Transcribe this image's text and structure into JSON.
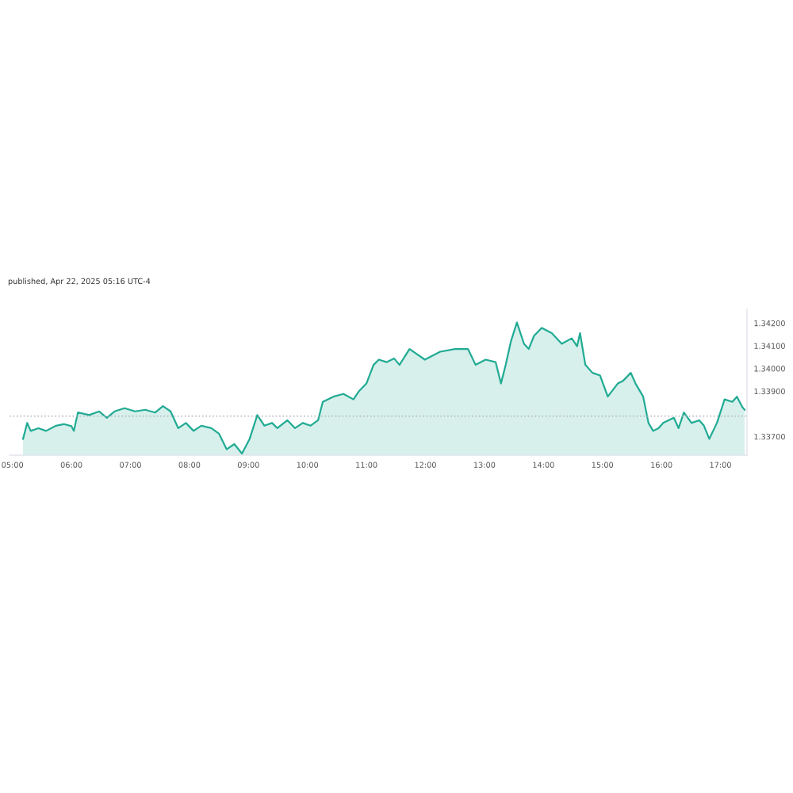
{
  "chart_data": {
    "type": "area",
    "title": "published, Apr 22, 2025 05:16 UTC-4",
    "x": [
      5.18,
      5.25,
      5.31,
      5.44,
      5.57,
      5.74,
      5.87,
      6.0,
      6.04,
      6.11,
      6.3,
      6.47,
      6.6,
      6.73,
      6.9,
      7.08,
      7.25,
      7.42,
      7.55,
      7.68,
      7.81,
      7.94,
      8.07,
      8.2,
      8.37,
      8.5,
      8.63,
      8.76,
      8.89,
      9.02,
      9.15,
      9.27,
      9.4,
      9.49,
      9.66,
      9.79,
      9.92,
      10.05,
      10.18,
      10.26,
      10.44,
      10.61,
      10.78,
      10.87,
      11.0,
      11.12,
      11.21,
      11.34,
      11.47,
      11.56,
      11.73,
      11.99,
      12.25,
      12.5,
      12.72,
      12.85,
      13.02,
      13.19,
      13.28,
      13.36,
      13.45,
      13.55,
      13.67,
      13.75,
      13.84,
      13.97,
      14.14,
      14.31,
      14.48,
      14.57,
      14.62,
      14.71,
      14.83,
      14.96,
      15.09,
      15.26,
      15.35,
      15.48,
      15.56,
      15.69,
      15.78,
      15.86,
      15.95,
      16.03,
      16.21,
      16.29,
      16.38,
      16.51,
      16.64,
      16.72,
      16.81,
      16.94,
      17.07,
      17.2,
      17.28,
      17.37,
      17.41
    ],
    "series": [
      {
        "color": "#22ab94",
        "values": [
          1.3369,
          1.3376,
          1.33725,
          1.33737,
          1.33725,
          1.33748,
          1.33755,
          1.33746,
          1.33725,
          1.33806,
          1.33795,
          1.33811,
          1.33783,
          1.33811,
          1.33825,
          1.33811,
          1.33818,
          1.33806,
          1.33834,
          1.33811,
          1.33737,
          1.3376,
          1.33725,
          1.33748,
          1.33737,
          1.33713,
          1.33644,
          1.33667,
          1.33625,
          1.3369,
          1.33795,
          1.33748,
          1.3376,
          1.33737,
          1.33772,
          1.33737,
          1.3376,
          1.33748,
          1.33772,
          1.33853,
          1.33876,
          1.33888,
          1.33864,
          1.33899,
          1.33934,
          1.34016,
          1.34039,
          1.34028,
          1.34044,
          1.34016,
          1.34086,
          1.34039,
          1.34074,
          1.34086,
          1.34086,
          1.34016,
          1.34039,
          1.34028,
          1.33934,
          1.34016,
          1.34121,
          1.34203,
          1.34109,
          1.34086,
          1.34144,
          1.34179,
          1.34156,
          1.34109,
          1.34133,
          1.34098,
          1.34156,
          1.34016,
          1.33981,
          1.33969,
          1.33876,
          1.33934,
          1.33946,
          1.33981,
          1.33934,
          1.33876,
          1.3376,
          1.33725,
          1.33737,
          1.3376,
          1.33783,
          1.33737,
          1.33806,
          1.3376,
          1.33772,
          1.33748,
          1.3369,
          1.3376,
          1.33864,
          1.33853,
          1.33876,
          1.3383,
          1.33818
        ]
      }
    ],
    "xlim": [
      4.95,
      17.45
    ],
    "xticks": [
      {
        "value": 5,
        "label": "05:00"
      },
      {
        "value": 6,
        "label": "06:00"
      },
      {
        "value": 7,
        "label": "07:00"
      },
      {
        "value": 8,
        "label": "08:00"
      },
      {
        "value": 9,
        "label": "09:00"
      },
      {
        "value": 10,
        "label": "10:00"
      },
      {
        "value": 11,
        "label": "11:00"
      },
      {
        "value": 12,
        "label": "12:00"
      },
      {
        "value": 13,
        "label": "13:00"
      },
      {
        "value": 14,
        "label": "14:00"
      },
      {
        "value": 15,
        "label": "15:00"
      },
      {
        "value": 16,
        "label": "16:00"
      },
      {
        "value": 17,
        "label": "17:00"
      }
    ],
    "ylim": [
      1.33618,
      1.34261
    ],
    "yticks": [
      {
        "value": 1.337,
        "label": "1.33700"
      },
      {
        "value": 1.339,
        "label": "1.33900"
      },
      {
        "value": 1.34,
        "label": "1.34000"
      },
      {
        "value": 1.341,
        "label": "1.34100"
      },
      {
        "value": 1.342,
        "label": "1.34200"
      }
    ],
    "ref_lines": [
      {
        "axis": "y",
        "value": 1.3379,
        "color": "#b2b5be",
        "line_style": "dotted"
      }
    ],
    "grid": false,
    "legend": false
  }
}
